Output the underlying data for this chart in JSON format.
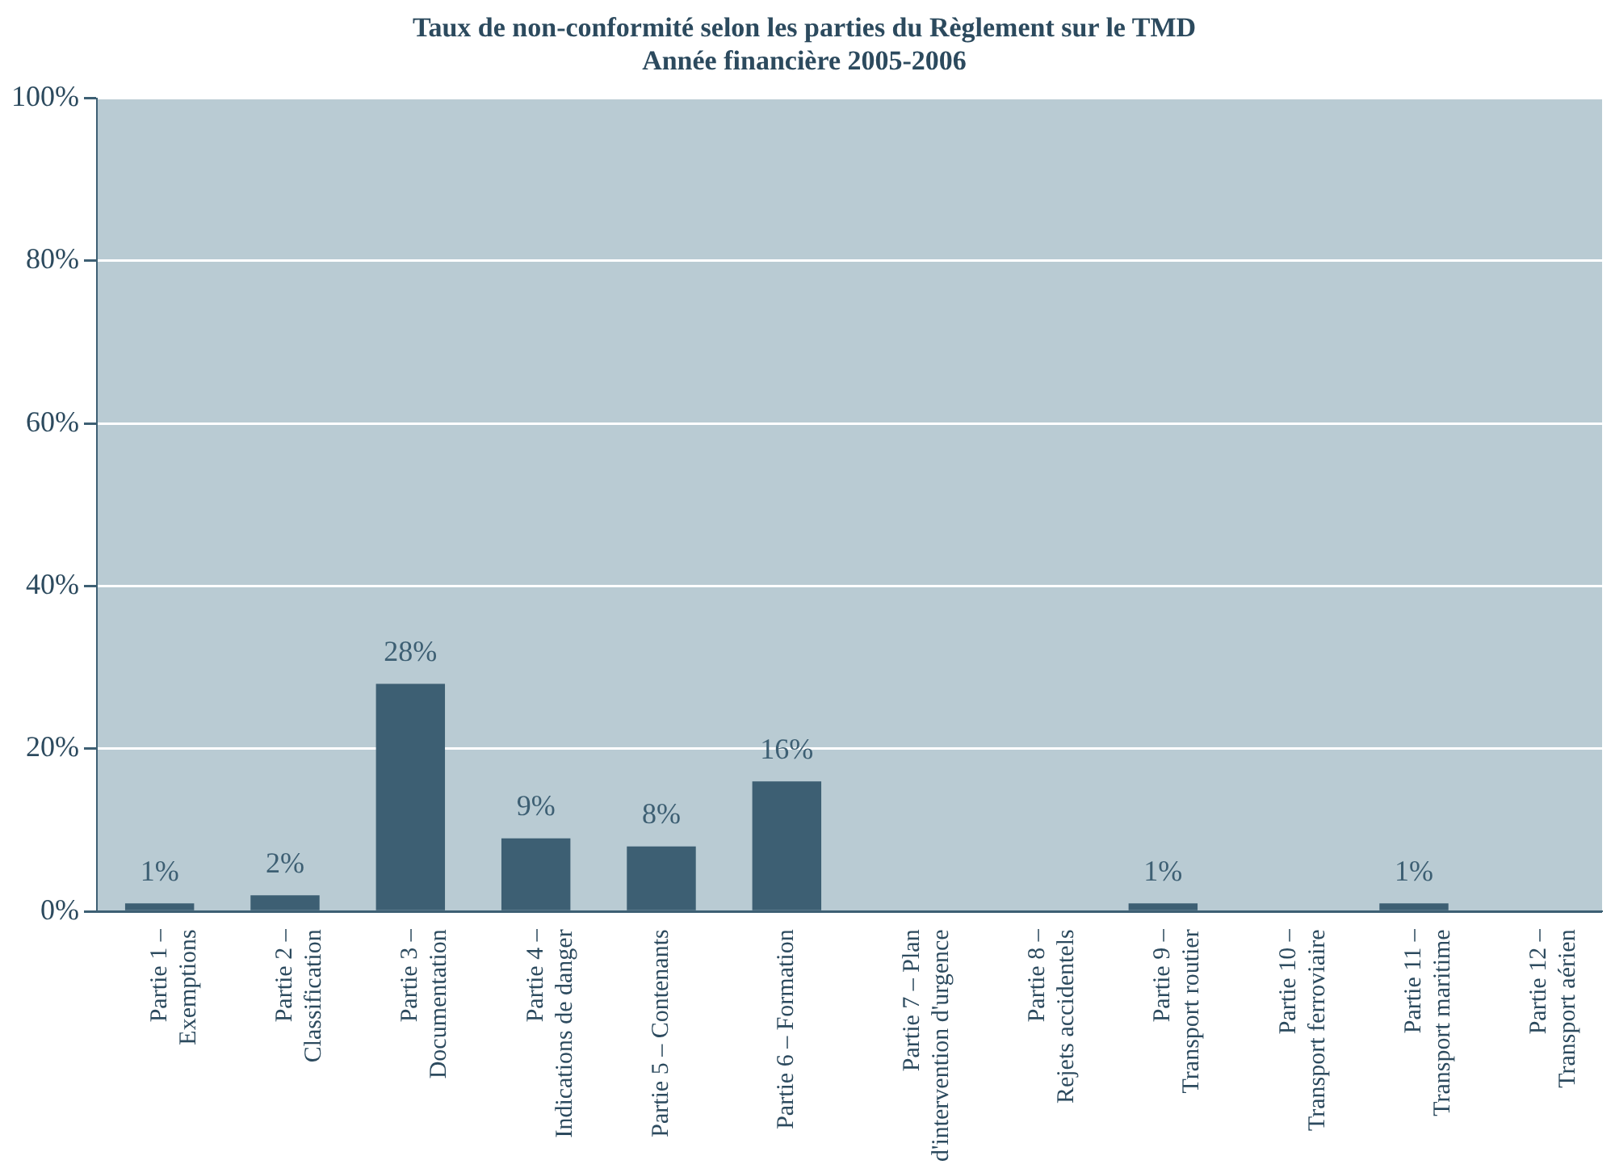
{
  "chart_data": {
    "type": "bar",
    "title": "Taux de non-conformité selon les parties du Règlement sur le TMD",
    "subtitle": "Année financière 2005-2006",
    "categories": [
      "Partie 1 –\nExemptions",
      "Partie 2 –\nClassification",
      "Partie 3 –\nDocumentation",
      "Partie 4 –\nIndications de danger",
      "Partie 5 – Contenants",
      "Partie 6 – Formation",
      "Partie 7 – Plan\nd'intervention d'urgence",
      "Partie 8 –\nRejets accidentels",
      "Partie 9 –\nTransport routier",
      "Partie 10 –\nTransport ferroviaire",
      "Partie 11 –\nTransport maritime",
      "Partie 12 –\nTransport aérien"
    ],
    "values": [
      1,
      2,
      28,
      9,
      8,
      16,
      0,
      0,
      1,
      0,
      1,
      0
    ],
    "value_labels": [
      "1%",
      "2%",
      "28%",
      "9%",
      "8%",
      "16%",
      null,
      null,
      "1%",
      null,
      "1%",
      null
    ],
    "color": "#3d5f73",
    "ylim": [
      0,
      100
    ],
    "yticks": [
      {
        "value": 0,
        "label": "0%"
      },
      {
        "value": 20,
        "label": "20%"
      },
      {
        "value": 40,
        "label": "40%"
      },
      {
        "value": 60,
        "label": "60%"
      },
      {
        "value": 80,
        "label": "80%"
      },
      {
        "value": 100,
        "label": "100%"
      }
    ],
    "grid": "y",
    "legend": false
  }
}
